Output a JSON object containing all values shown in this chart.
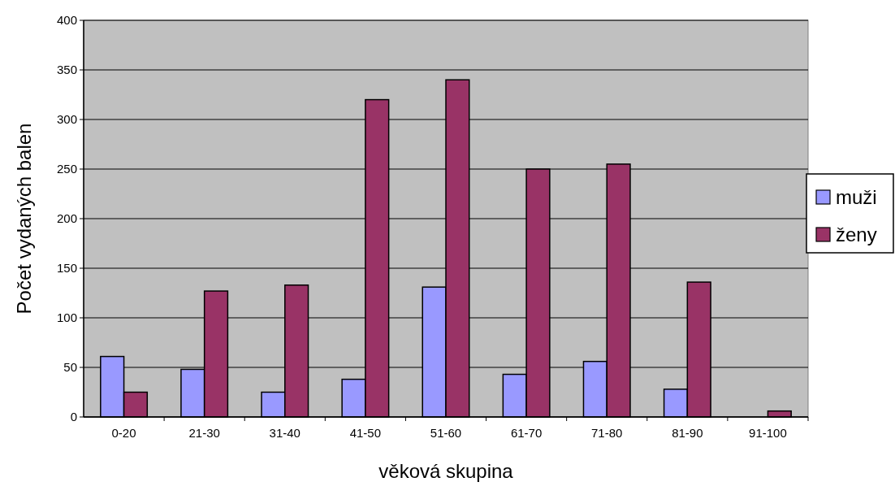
{
  "chart_data": {
    "type": "bar",
    "xlabel": "věková skupina",
    "ylabel": "Počet vydaných balen",
    "categories": [
      "0-20",
      "21-30",
      "31-40",
      "41-50",
      "51-60",
      "61-70",
      "71-80",
      "81-90",
      "91-100"
    ],
    "series": [
      {
        "name": "muži",
        "color": "#9999ff",
        "values": [
          61,
          48,
          25,
          38,
          131,
          43,
          56,
          28,
          0
        ]
      },
      {
        "name": "ženy",
        "color": "#993366",
        "values": [
          25,
          127,
          133,
          320,
          340,
          250,
          255,
          136,
          6
        ]
      }
    ],
    "ylim": [
      0,
      400
    ],
    "yticks": [
      0,
      50,
      100,
      150,
      200,
      250,
      300,
      350,
      400
    ],
    "grid": "y",
    "legend": "right"
  }
}
